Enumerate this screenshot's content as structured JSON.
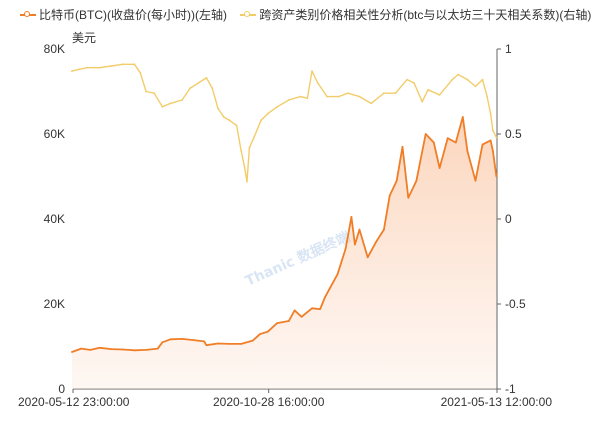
{
  "chart_data": {
    "type": "line",
    "legend": [
      {
        "label": "比特币(BTC)(收盘价(每小时))(左轴)",
        "color": "#f07e27"
      },
      {
        "label": "跨资产类别价格相关性分析(btc与以太坊三十天相关系数)(右轴)",
        "color": "#f3cc6a"
      }
    ],
    "left_axis": {
      "unit": "美元",
      "ylim": [
        0,
        80000
      ],
      "ticks": [
        0,
        20000,
        40000,
        60000,
        80000
      ],
      "tick_labels": [
        "0",
        "20K",
        "40K",
        "60K",
        "80K"
      ]
    },
    "right_axis": {
      "ylim": [
        -1,
        1
      ],
      "ticks": [
        -1,
        -0.5,
        0,
        0.5,
        1
      ],
      "tick_labels": [
        "-1",
        "-0.5",
        "0",
        "0.5",
        "1"
      ]
    },
    "x_axis": {
      "range": [
        "2020-05-12 23:00:00",
        "2021-05-13 12:00:00"
      ],
      "tick_labels": [
        {
          "date": "2020-05-12 23:00:00",
          "label": "2020-05-12 23:00:00"
        },
        {
          "date": "2020-10-28 16:00:00",
          "label": "2020-10-28 16:00:00"
        },
        {
          "date": "2021-05-13 12:00:00",
          "label": "2021-05-13 12:00:00"
        }
      ]
    },
    "watermark": "Thanic 数据终端",
    "series": [
      {
        "name": "比特币(BTC)(收盘价(每小时))(左轴)",
        "axis": "left",
        "color": "#f07e27",
        "area": true,
        "points": [
          [
            "2020-05-12",
            8700
          ],
          [
            "2020-05-20",
            9500
          ],
          [
            "2020-05-28",
            9200
          ],
          [
            "2020-06-05",
            9700
          ],
          [
            "2020-06-15",
            9400
          ],
          [
            "2020-06-25",
            9300
          ],
          [
            "2020-07-05",
            9100
          ],
          [
            "2020-07-15",
            9200
          ],
          [
            "2020-07-25",
            9500
          ],
          [
            "2020-07-29",
            11000
          ],
          [
            "2020-08-05",
            11700
          ],
          [
            "2020-08-15",
            11800
          ],
          [
            "2020-08-25",
            11500
          ],
          [
            "2020-09-03",
            11200
          ],
          [
            "2020-09-05",
            10300
          ],
          [
            "2020-09-15",
            10700
          ],
          [
            "2020-09-25",
            10600
          ],
          [
            "2020-10-05",
            10600
          ],
          [
            "2020-10-15",
            11400
          ],
          [
            "2020-10-21",
            12900
          ],
          [
            "2020-10-28",
            13500
          ],
          [
            "2020-11-05",
            15500
          ],
          [
            "2020-11-15",
            16000
          ],
          [
            "2020-11-20",
            18500
          ],
          [
            "2020-11-26",
            17000
          ],
          [
            "2020-12-05",
            19000
          ],
          [
            "2020-12-12",
            18800
          ],
          [
            "2020-12-16",
            21500
          ],
          [
            "2020-12-20",
            23500
          ],
          [
            "2020-12-27",
            27000
          ],
          [
            "2021-01-03",
            33000
          ],
          [
            "2021-01-08",
            40500
          ],
          [
            "2021-01-11",
            34000
          ],
          [
            "2021-01-15",
            37500
          ],
          [
            "2021-01-22",
            31000
          ],
          [
            "2021-01-29",
            34500
          ],
          [
            "2021-02-05",
            37500
          ],
          [
            "2021-02-10",
            45500
          ],
          [
            "2021-02-16",
            49000
          ],
          [
            "2021-02-21",
            57000
          ],
          [
            "2021-02-26",
            45000
          ],
          [
            "2021-03-05",
            49000
          ],
          [
            "2021-03-13",
            60000
          ],
          [
            "2021-03-20",
            58000
          ],
          [
            "2021-03-25",
            52000
          ],
          [
            "2021-04-01",
            59000
          ],
          [
            "2021-04-08",
            58000
          ],
          [
            "2021-04-14",
            64000
          ],
          [
            "2021-04-18",
            56000
          ],
          [
            "2021-04-25",
            49000
          ],
          [
            "2021-05-01",
            57500
          ],
          [
            "2021-05-08",
            58500
          ],
          [
            "2021-05-10",
            56000
          ],
          [
            "2021-05-13",
            50000
          ]
        ]
      },
      {
        "name": "跨资产类别价格相关性分析(btc与以太坊三十天相关系数)(右轴)",
        "axis": "right",
        "color": "#f3cc6a",
        "area": false,
        "points": [
          [
            "2020-05-12",
            0.87
          ],
          [
            "2020-05-18",
            0.88
          ],
          [
            "2020-05-25",
            0.89
          ],
          [
            "2020-06-05",
            0.89
          ],
          [
            "2020-06-15",
            0.9
          ],
          [
            "2020-06-25",
            0.91
          ],
          [
            "2020-07-05",
            0.91
          ],
          [
            "2020-07-10",
            0.86
          ],
          [
            "2020-07-15",
            0.75
          ],
          [
            "2020-07-22",
            0.74
          ],
          [
            "2020-07-29",
            0.66
          ],
          [
            "2020-08-05",
            0.68
          ],
          [
            "2020-08-15",
            0.7
          ],
          [
            "2020-08-22",
            0.77
          ],
          [
            "2020-08-29",
            0.8
          ],
          [
            "2020-09-05",
            0.83
          ],
          [
            "2020-09-10",
            0.77
          ],
          [
            "2020-09-15",
            0.65
          ],
          [
            "2020-09-20",
            0.6
          ],
          [
            "2020-09-25",
            0.58
          ],
          [
            "2020-10-01",
            0.55
          ],
          [
            "2020-10-05",
            0.4
          ],
          [
            "2020-10-08",
            0.3
          ],
          [
            "2020-10-10",
            0.22
          ],
          [
            "2020-10-12",
            0.42
          ],
          [
            "2020-10-16",
            0.48
          ],
          [
            "2020-10-22",
            0.58
          ],
          [
            "2020-10-28",
            0.62
          ],
          [
            "2020-11-05",
            0.66
          ],
          [
            "2020-11-15",
            0.7
          ],
          [
            "2020-11-25",
            0.72
          ],
          [
            "2020-12-01",
            0.71
          ],
          [
            "2020-12-05",
            0.87
          ],
          [
            "2020-12-10",
            0.8
          ],
          [
            "2020-12-18",
            0.72
          ],
          [
            "2020-12-28",
            0.72
          ],
          [
            "2021-01-05",
            0.74
          ],
          [
            "2021-01-15",
            0.72
          ],
          [
            "2021-01-25",
            0.68
          ],
          [
            "2021-02-05",
            0.74
          ],
          [
            "2021-02-15",
            0.74
          ],
          [
            "2021-02-25",
            0.82
          ],
          [
            "2021-03-03",
            0.8
          ],
          [
            "2021-03-10",
            0.69
          ],
          [
            "2021-03-15",
            0.76
          ],
          [
            "2021-03-25",
            0.73
          ],
          [
            "2021-04-05",
            0.82
          ],
          [
            "2021-04-10",
            0.85
          ],
          [
            "2021-04-18",
            0.82
          ],
          [
            "2021-04-25",
            0.78
          ],
          [
            "2021-05-01",
            0.82
          ],
          [
            "2021-05-05",
            0.72
          ],
          [
            "2021-05-08",
            0.62
          ],
          [
            "2021-05-10",
            0.52
          ],
          [
            "2021-05-13",
            0.48
          ]
        ]
      }
    ]
  }
}
